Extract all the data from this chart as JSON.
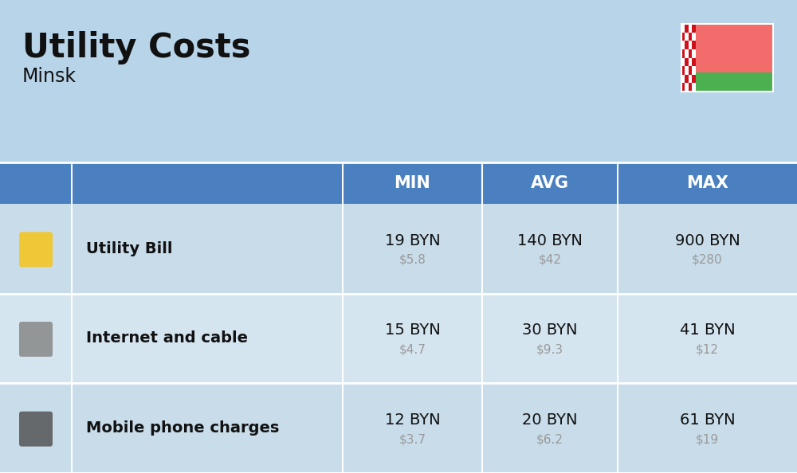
{
  "title": "Utility Costs",
  "subtitle": "Minsk",
  "bg_color": "#b8d4e8",
  "header_color": "#4a7fc0",
  "header_text_color": "#ffffff",
  "row_colors": [
    "#c8dcea",
    "#d5e5f0"
  ],
  "icon_col_color_even": "#c0d8eb",
  "icon_col_color_odd": "#cde2f0",
  "table_border_color": "#ffffff",
  "rows": [
    {
      "label": "Utility Bill",
      "min_byn": "19 BYN",
      "min_usd": "$5.8",
      "avg_byn": "140 BYN",
      "avg_usd": "$42",
      "max_byn": "900 BYN",
      "max_usd": "$280"
    },
    {
      "label": "Internet and cable",
      "min_byn": "15 BYN",
      "min_usd": "$4.7",
      "avg_byn": "30 BYN",
      "avg_usd": "$9.3",
      "max_byn": "41 BYN",
      "max_usd": "$12"
    },
    {
      "label": "Mobile phone charges",
      "min_byn": "12 BYN",
      "min_usd": "$3.7",
      "avg_byn": "20 BYN",
      "avg_usd": "$6.2",
      "max_byn": "61 BYN",
      "max_usd": "$19"
    }
  ],
  "col_headers": [
    "MIN",
    "AVG",
    "MAX"
  ],
  "flag_red": "#f26c6c",
  "flag_green": "#4caf50",
  "flag_ornament_red": "#cf101a",
  "main_text_color": "#111111",
  "usd_text_color": "#999999",
  "label_text_color": "#111111",
  "title_fontsize": 30,
  "subtitle_fontsize": 17,
  "header_fontsize": 15,
  "label_fontsize": 14,
  "value_fontsize": 14,
  "usd_fontsize": 11
}
